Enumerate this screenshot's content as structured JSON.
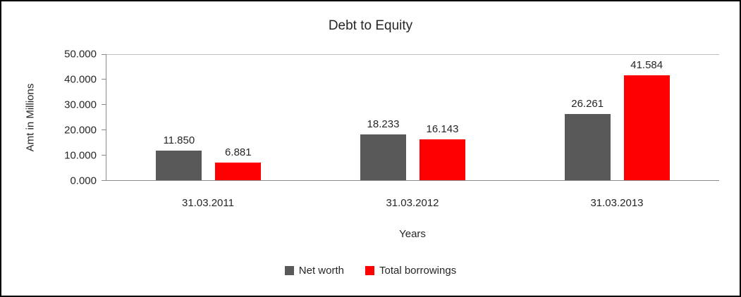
{
  "chart_data": {
    "type": "bar",
    "title": "Debt to Equity",
    "ylabel": "Amt in Millions",
    "xlabel": "Years",
    "categories": [
      "31.03.2011",
      "31.03.2012",
      "31.03.2013"
    ],
    "series": [
      {
        "name": "Net worth",
        "color": "#595959",
        "values": [
          11.85,
          18.233,
          26.261
        ],
        "labels": [
          "11.850",
          "18.233",
          "26.261"
        ]
      },
      {
        "name": "Total borrowings",
        "color": "#ff0000",
        "values": [
          6.881,
          16.143,
          41.584
        ],
        "labels": [
          "6.881",
          "16.143",
          "41.584"
        ]
      }
    ],
    "ylim": [
      0,
      50
    ],
    "yticks": [
      "0.000",
      "10.000",
      "20.000",
      "30.000",
      "40.000",
      "50.000"
    ],
    "grid": "top-line-only",
    "legend_position": "bottom-center"
  }
}
